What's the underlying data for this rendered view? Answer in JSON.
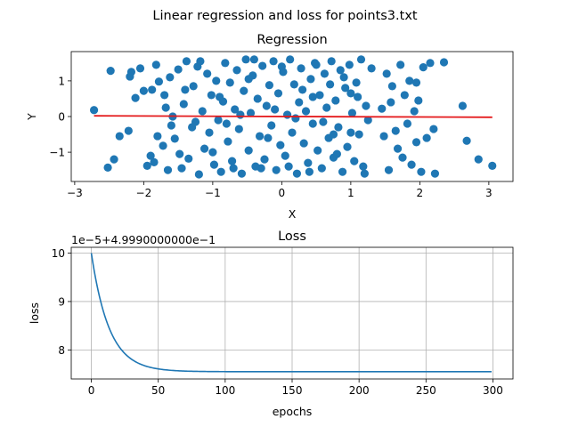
{
  "figure": {
    "suptitle": "Linear regression and loss for points3.txt"
  },
  "colors": {
    "points": "#1f77b4",
    "regression_line": "#e41a1c",
    "loss_line": "#1f77b4",
    "grid": "#b0b0b0"
  },
  "chart_data": [
    {
      "type": "scatter",
      "title": "Regression",
      "xlabel": "X",
      "ylabel": "Y",
      "xlim": [
        -3.05,
        3.35
      ],
      "ylim": [
        -1.82,
        1.82
      ],
      "xticks": [
        -3,
        -2,
        -1,
        0,
        1,
        2,
        3
      ],
      "yticks": [
        -1,
        0,
        1
      ],
      "grid": false,
      "regression_line": {
        "x": [
          -2.72,
          3.05
        ],
        "y": [
          0.02,
          -0.02
        ]
      },
      "points": [
        [
          -2.72,
          0.18
        ],
        [
          -2.52,
          -1.43
        ],
        [
          -2.48,
          1.28
        ],
        [
          -2.43,
          -1.2
        ],
        [
          -2.35,
          -0.55
        ],
        [
          -2.2,
          1.12
        ],
        [
          -2.18,
          1.25
        ],
        [
          -2.12,
          0.52
        ],
        [
          -2.22,
          -0.4
        ],
        [
          -2.0,
          0.72
        ],
        [
          -1.95,
          -1.38
        ],
        [
          -1.88,
          0.75
        ],
        [
          -1.85,
          -1.28
        ],
        [
          -1.82,
          1.45
        ],
        [
          -1.78,
          0.98
        ],
        [
          -1.72,
          -0.82
        ],
        [
          -1.68,
          0.25
        ],
        [
          -1.65,
          -1.5
        ],
        [
          -1.62,
          1.1
        ],
        [
          -1.58,
          0.0
        ],
        [
          -1.55,
          -0.62
        ],
        [
          -1.5,
          1.32
        ],
        [
          -1.45,
          -1.45
        ],
        [
          -1.42,
          0.35
        ],
        [
          -1.38,
          1.55
        ],
        [
          -1.35,
          -1.18
        ],
        [
          -1.3,
          -0.3
        ],
        [
          -1.28,
          0.85
        ],
        [
          -1.22,
          1.4
        ],
        [
          -1.2,
          -1.62
        ],
        [
          -1.15,
          0.15
        ],
        [
          -1.12,
          -0.9
        ],
        [
          -1.08,
          1.2
        ],
        [
          -1.05,
          -0.45
        ],
        [
          -1.02,
          0.6
        ],
        [
          -0.98,
          -1.35
        ],
        [
          -0.95,
          1.0
        ],
        [
          -0.92,
          -0.1
        ],
        [
          -0.88,
          -1.55
        ],
        [
          -0.85,
          0.42
        ],
        [
          -0.82,
          1.5
        ],
        [
          -0.78,
          -0.7
        ],
        [
          -0.75,
          0.95
        ],
        [
          -0.72,
          -1.25
        ],
        [
          -0.68,
          0.2
        ],
        [
          -0.65,
          1.3
        ],
        [
          -0.62,
          -0.35
        ],
        [
          -0.58,
          -1.6
        ],
        [
          -0.55,
          0.72
        ],
        [
          -0.52,
          1.6
        ],
        [
          -0.48,
          -0.95
        ],
        [
          -0.45,
          0.1
        ],
        [
          -0.42,
          1.15
        ],
        [
          -0.38,
          -1.4
        ],
        [
          -0.35,
          0.5
        ],
        [
          -0.32,
          -0.55
        ],
        [
          -0.28,
          1.42
        ],
        [
          -0.25,
          -1.2
        ],
        [
          -0.22,
          0.3
        ],
        [
          -0.18,
          0.88
        ],
        [
          -0.15,
          -0.25
        ],
        [
          -0.12,
          1.55
        ],
        [
          -0.08,
          -1.5
        ],
        [
          -0.05,
          0.65
        ],
        [
          -0.02,
          -0.8
        ],
        [
          0.02,
          1.25
        ],
        [
          0.05,
          -1.1
        ],
        [
          0.08,
          0.05
        ],
        [
          0.12,
          1.6
        ],
        [
          0.15,
          -0.45
        ],
        [
          0.18,
          0.9
        ],
        [
          0.22,
          -1.6
        ],
        [
          0.25,
          0.4
        ],
        [
          0.28,
          1.35
        ],
        [
          0.32,
          -0.75
        ],
        [
          0.35,
          0.15
        ],
        [
          0.38,
          -1.3
        ],
        [
          0.42,
          1.05
        ],
        [
          0.45,
          -0.2
        ],
        [
          0.48,
          1.5
        ],
        [
          0.52,
          -0.95
        ],
        [
          0.55,
          0.6
        ],
        [
          0.58,
          -1.45
        ],
        [
          0.62,
          1.2
        ],
        [
          0.65,
          0.25
        ],
        [
          0.68,
          -0.6
        ],
        [
          0.72,
          1.55
        ],
        [
          0.75,
          -1.15
        ],
        [
          0.78,
          0.45
        ],
        [
          0.82,
          -0.3
        ],
        [
          0.85,
          1.3
        ],
        [
          0.88,
          -1.55
        ],
        [
          0.92,
          0.8
        ],
        [
          0.95,
          -0.85
        ],
        [
          0.98,
          1.45
        ],
        [
          1.02,
          0.1
        ],
        [
          1.05,
          -1.25
        ],
        [
          1.08,
          0.95
        ],
        [
          1.12,
          -0.5
        ],
        [
          1.15,
          1.6
        ],
        [
          1.18,
          -1.4
        ],
        [
          1.22,
          0.3
        ],
        [
          1.25,
          -0.1
        ],
        [
          1.45,
          0.22
        ],
        [
          1.48,
          -0.55
        ],
        [
          1.52,
          1.2
        ],
        [
          1.55,
          -1.5
        ],
        [
          1.6,
          0.85
        ],
        [
          1.65,
          -0.4
        ],
        [
          1.72,
          1.45
        ],
        [
          1.75,
          -1.15
        ],
        [
          1.78,
          0.6
        ],
        [
          1.82,
          -0.2
        ],
        [
          1.85,
          1.0
        ],
        [
          1.88,
          -1.35
        ],
        [
          1.92,
          0.15
        ],
        [
          1.95,
          -0.72
        ],
        [
          1.98,
          0.45
        ],
        [
          2.02,
          -1.55
        ],
        [
          2.05,
          1.38
        ],
        [
          2.1,
          -0.6
        ],
        [
          2.15,
          1.5
        ],
        [
          2.2,
          -0.35
        ],
        [
          2.35,
          1.52
        ],
        [
          2.62,
          0.3
        ],
        [
          2.68,
          -0.68
        ],
        [
          2.85,
          -1.2
        ],
        [
          3.05,
          -1.38
        ],
        [
          -2.05,
          1.35
        ],
        [
          -1.9,
          -1.1
        ],
        [
          -1.8,
          -0.55
        ],
        [
          -1.7,
          0.6
        ],
        [
          -1.48,
          -1.05
        ],
        [
          -1.4,
          0.75
        ],
        [
          -1.25,
          -0.15
        ],
        [
          -1.18,
          1.55
        ],
        [
          -1.0,
          -1.0
        ],
        [
          -0.9,
          0.55
        ],
        [
          -0.7,
          -1.45
        ],
        [
          -0.6,
          0.05
        ],
        [
          -0.4,
          1.6
        ],
        [
          -0.3,
          -1.45
        ],
        [
          -0.1,
          0.2
        ],
        [
          0.0,
          1.4
        ],
        [
          0.1,
          -1.4
        ],
        [
          0.3,
          0.75
        ],
        [
          0.4,
          -1.55
        ],
        [
          0.5,
          1.45
        ],
        [
          0.6,
          -0.15
        ],
        [
          0.7,
          0.9
        ],
        [
          0.8,
          -1.05
        ],
        [
          0.9,
          1.1
        ],
        [
          1.0,
          -0.45
        ],
        [
          1.1,
          0.55
        ],
        [
          1.2,
          -1.6
        ],
        [
          1.3,
          1.35
        ],
        [
          1.58,
          0.4
        ],
        [
          1.68,
          -0.9
        ],
        [
          -0.48,
          1.05
        ],
        [
          -0.2,
          -0.6
        ],
        [
          0.2,
          -0.05
        ],
        [
          0.45,
          0.55
        ],
        [
          0.75,
          -0.5
        ],
        [
          1.0,
          0.65
        ],
        [
          -0.8,
          -0.2
        ],
        [
          -1.6,
          -0.25
        ],
        [
          2.22,
          -1.6
        ],
        [
          1.95,
          0.95
        ]
      ]
    },
    {
      "type": "line",
      "title": "Loss",
      "xlabel": "epochs",
      "ylabel": "loss",
      "offset_label": "1e−5+4.9990000000e−1",
      "xlim": [
        -15,
        315
      ],
      "ylim": [
        7.4,
        10.12
      ],
      "xticks": [
        0,
        50,
        100,
        150,
        200,
        250,
        300
      ],
      "yticks": [
        8,
        9,
        10
      ],
      "grid": true,
      "series": [
        {
          "curve": {
            "start": 10.0,
            "final": 7.55,
            "rate": 0.075,
            "epochs": 300
          }
        }
      ]
    }
  ]
}
